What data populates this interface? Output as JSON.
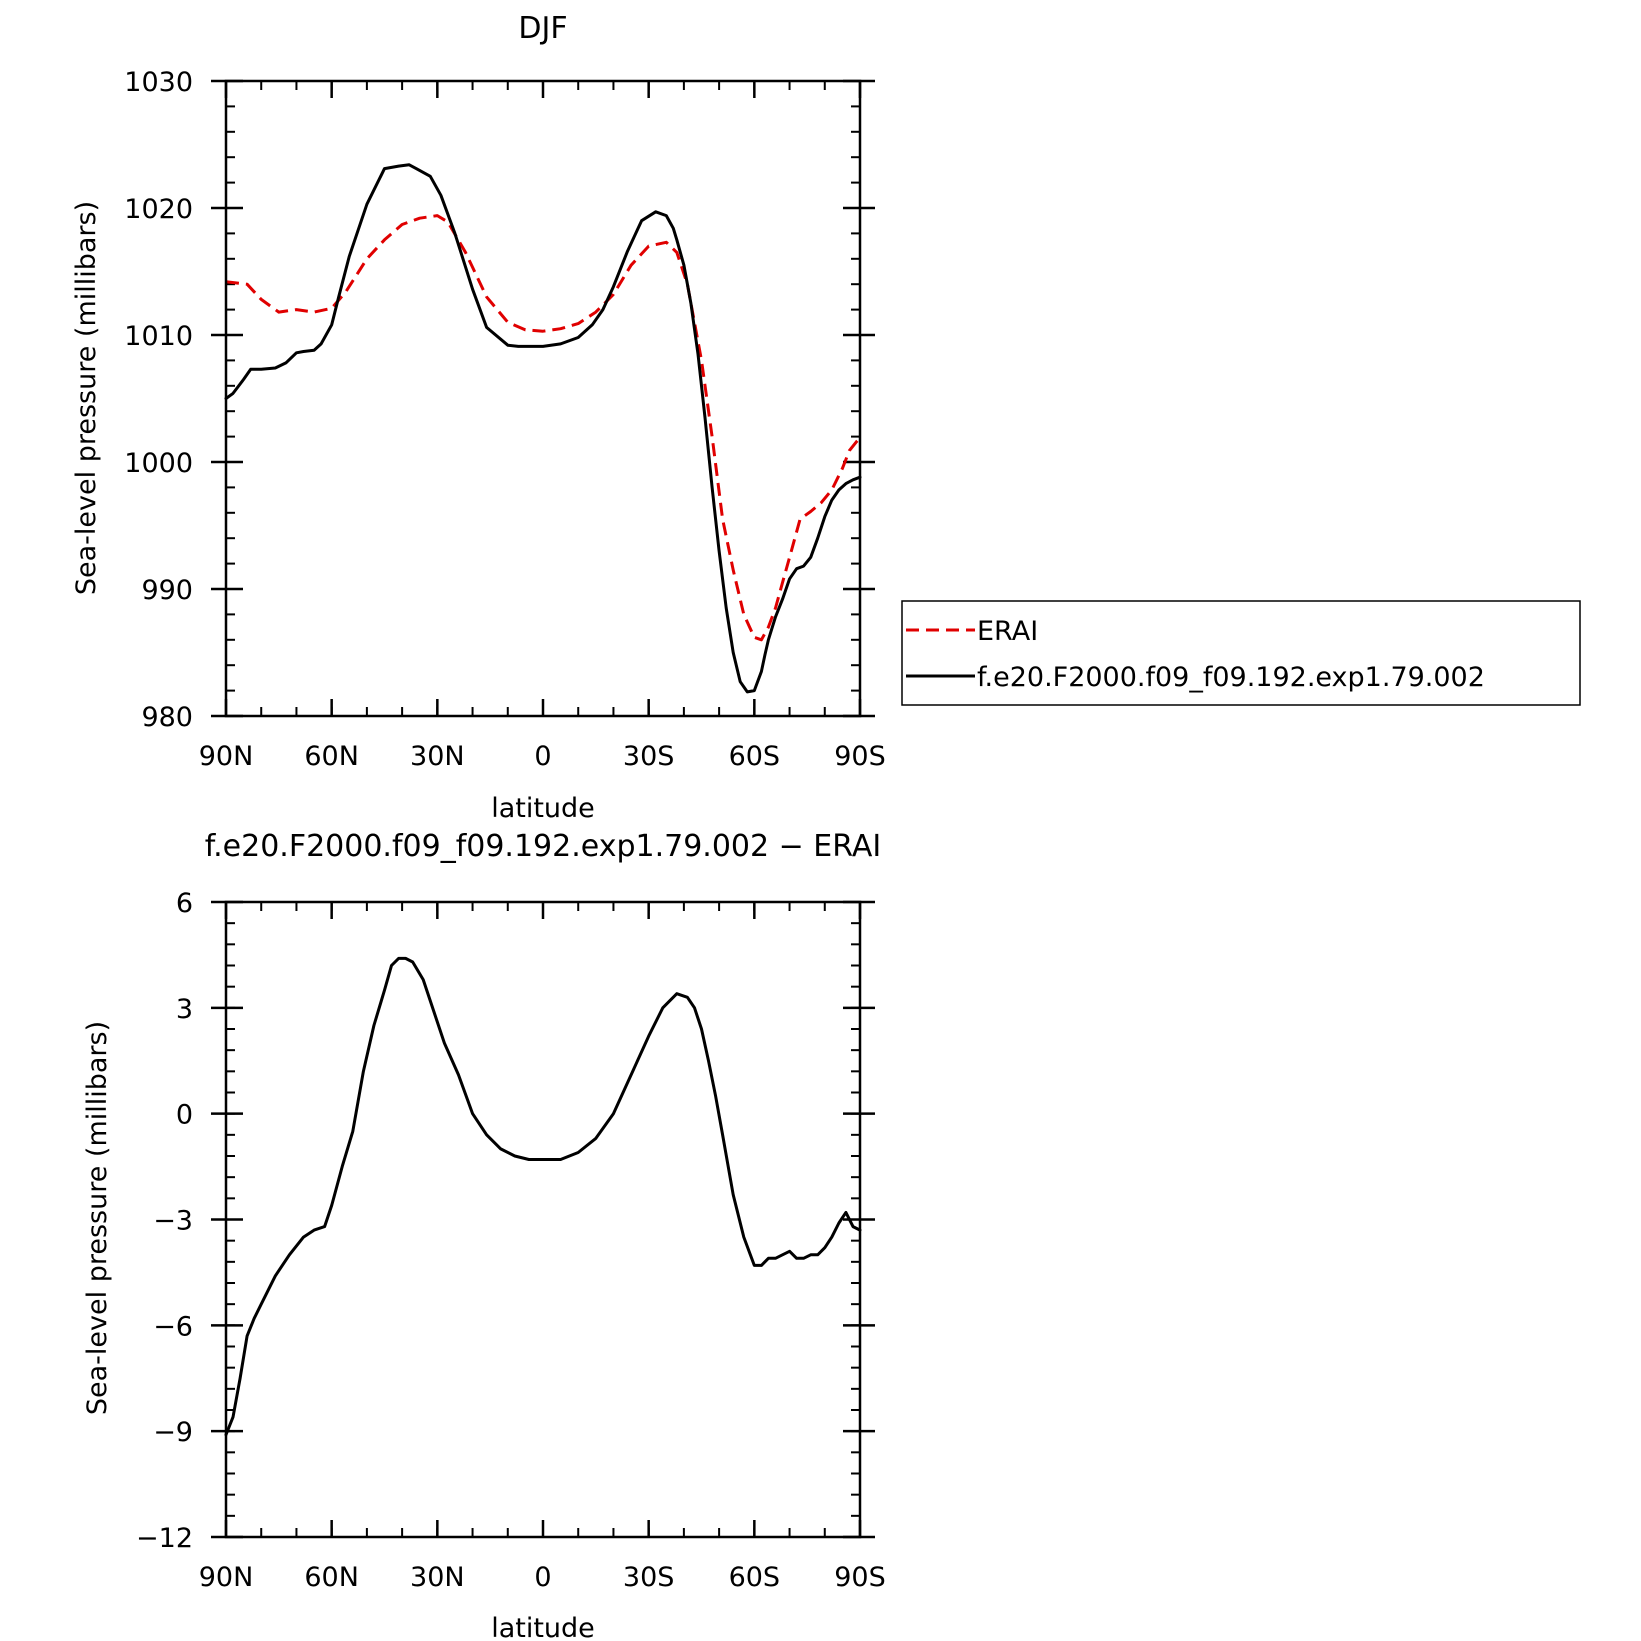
{
  "chart_data": [
    {
      "type": "line",
      "title": "DJF",
      "xlabel": "latitude",
      "ylabel": "Sea-level pressure (millibars)",
      "xlim": [
        -90,
        90
      ],
      "ylim": [
        980,
        1030
      ],
      "xticks": [
        -90,
        -60,
        -30,
        0,
        30,
        60,
        90
      ],
      "xtick_labels": [
        "90N",
        "60N",
        "30N",
        "0",
        "30S",
        "60S",
        "90S"
      ],
      "yticks": [
        980,
        990,
        1000,
        1010,
        1020,
        1030
      ],
      "ytick_labels": [
        "980",
        "990",
        "1000",
        "1010",
        "1020",
        "1030"
      ],
      "legend": "right",
      "series": [
        {
          "name": "ERAI",
          "color": "#e00000",
          "style": "dashed",
          "x": [
            -90,
            -84,
            -80,
            -75,
            -70,
            -65,
            -60,
            -56,
            -50,
            -45,
            -40,
            -35,
            -30,
            -27,
            -22,
            -16,
            -10,
            -5,
            0,
            5,
            10,
            15,
            20,
            25,
            30,
            35,
            38,
            41,
            45,
            48,
            51,
            54,
            57,
            60,
            62,
            64,
            66,
            68,
            70,
            73,
            76,
            79,
            82,
            85,
            87,
            89,
            90
          ],
          "values": [
            1014.2,
            1014.0,
            1012.8,
            1011.8,
            1012.0,
            1011.8,
            1012.1,
            1013.4,
            1016.0,
            1017.5,
            1018.7,
            1019.2,
            1019.4,
            1018.9,
            1016.5,
            1013.0,
            1011.0,
            1010.4,
            1010.3,
            1010.5,
            1010.9,
            1011.8,
            1013.2,
            1015.5,
            1017.0,
            1017.3,
            1016.5,
            1014.0,
            1008.0,
            1002.0,
            995.5,
            991.5,
            988.0,
            986.2,
            986.0,
            987.0,
            988.5,
            990.5,
            992.5,
            995.5,
            996.1,
            996.8,
            997.8,
            999.5,
            1000.9,
            1001.6,
            1001.9
          ]
        },
        {
          "name": "f.e20.F2000.f09_f09.192.exp1.79.002",
          "color": "#000000",
          "style": "solid",
          "x": [
            -90,
            -88,
            -85,
            -83,
            -80,
            -76,
            -73,
            -70,
            -68,
            -65,
            -63,
            -60,
            -58,
            -55,
            -50,
            -45,
            -41,
            -38,
            -36,
            -32,
            -29,
            -25,
            -20,
            -16,
            -10,
            -7,
            -4,
            0,
            5,
            10,
            14,
            17,
            20,
            24,
            28,
            32,
            35,
            37,
            38,
            40,
            42,
            44,
            46,
            48,
            50,
            52,
            54,
            56,
            58,
            60,
            62,
            63,
            64,
            66,
            68,
            70,
            72,
            74,
            76,
            78,
            80,
            82,
            84,
            86,
            88,
            90
          ],
          "values": [
            1005.0,
            1005.4,
            1006.5,
            1007.3,
            1007.3,
            1007.4,
            1007.8,
            1008.6,
            1008.7,
            1008.8,
            1009.3,
            1010.8,
            1013.0,
            1016.2,
            1020.3,
            1023.1,
            1023.3,
            1023.4,
            1023.1,
            1022.5,
            1021.0,
            1018.0,
            1013.6,
            1010.6,
            1009.2,
            1009.1,
            1009.1,
            1009.1,
            1009.3,
            1009.8,
            1010.8,
            1012.0,
            1013.8,
            1016.6,
            1019.0,
            1019.7,
            1019.4,
            1018.4,
            1017.5,
            1015.5,
            1012.5,
            1008.5,
            1003.5,
            998.0,
            993.0,
            988.5,
            985.0,
            982.7,
            981.9,
            982.0,
            983.5,
            984.8,
            986.0,
            987.8,
            989.2,
            990.8,
            991.6,
            991.8,
            992.5,
            994.0,
            995.7,
            997.0,
            997.8,
            998.3,
            998.6,
            998.8
          ]
        }
      ]
    },
    {
      "type": "line",
      "title": "f.e20.F2000.f09_f09.192.exp1.79.002 − ERAI",
      "xlabel": "latitude",
      "ylabel": "Sea-level pressure (millibars)",
      "xlim": [
        -90,
        90
      ],
      "ylim": [
        -12,
        6
      ],
      "xticks": [
        -90,
        -60,
        -30,
        0,
        30,
        60,
        90
      ],
      "xtick_labels": [
        "90N",
        "60N",
        "30N",
        "0",
        "30S",
        "60S",
        "90S"
      ],
      "yticks": [
        -12,
        -9,
        -6,
        -3,
        0,
        3,
        6
      ],
      "ytick_labels": [
        "−12",
        "−9",
        "−6",
        "−3",
        "0",
        "3",
        "6"
      ],
      "series": [
        {
          "color": "#000000",
          "style": "solid",
          "x": [
            -90,
            -88,
            -86,
            -84,
            -82,
            -80,
            -76,
            -72,
            -68,
            -65,
            -62,
            -60,
            -57,
            -54,
            -51,
            -48,
            -45,
            -43,
            -41,
            -39,
            -37,
            -34,
            -31,
            -28,
            -24,
            -20,
            -16,
            -12,
            -8,
            -4,
            0,
            5,
            10,
            15,
            20,
            25,
            30,
            34,
            38,
            41,
            43,
            45,
            47,
            49,
            51,
            54,
            57,
            60,
            62,
            64,
            66,
            68,
            70,
            72,
            74,
            76,
            78,
            80,
            82,
            84,
            86,
            88,
            90
          ],
          "values": [
            -9.1,
            -8.6,
            -7.5,
            -6.3,
            -5.8,
            -5.4,
            -4.6,
            -4.0,
            -3.5,
            -3.3,
            -3.2,
            -2.6,
            -1.5,
            -0.5,
            1.2,
            2.5,
            3.5,
            4.2,
            4.4,
            4.4,
            4.3,
            3.8,
            2.9,
            2.0,
            1.1,
            0.0,
            -0.6,
            -1.0,
            -1.2,
            -1.3,
            -1.3,
            -1.3,
            -1.1,
            -0.7,
            0.0,
            1.1,
            2.2,
            3.0,
            3.4,
            3.3,
            3.0,
            2.4,
            1.5,
            0.5,
            -0.6,
            -2.3,
            -3.5,
            -4.3,
            -4.3,
            -4.1,
            -4.1,
            -4.0,
            -3.9,
            -4.1,
            -4.1,
            -4.0,
            -4.0,
            -3.8,
            -3.5,
            -3.1,
            -2.8,
            -3.2,
            -3.3
          ]
        }
      ]
    }
  ]
}
